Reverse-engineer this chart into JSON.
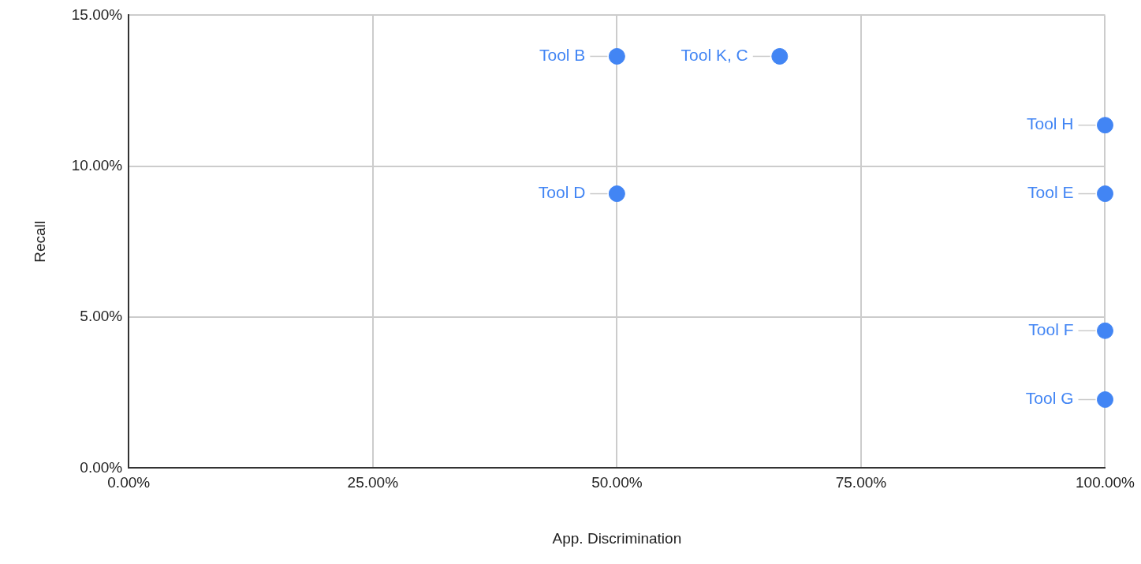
{
  "chart_data": {
    "type": "scatter",
    "xlabel": "App. Discrimination",
    "ylabel": "Recall",
    "x": [
      50,
      66.67,
      100,
      50,
      100,
      100,
      100
    ],
    "series": [
      {
        "color": "#4285f4",
        "values": [
          13.64,
          13.64,
          11.36,
          9.09,
          9.09,
          4.55,
          2.27
        ]
      }
    ],
    "annotations": [
      {
        "text": "Tool B",
        "x": 50,
        "y": 13.64
      },
      {
        "text": "Tool K, C",
        "x": 66.67,
        "y": 13.64
      },
      {
        "text": "Tool H",
        "x": 100,
        "y": 11.36
      },
      {
        "text": "Tool D",
        "x": 50,
        "y": 9.09
      },
      {
        "text": "Tool E",
        "x": 100,
        "y": 9.09
      },
      {
        "text": "Tool F",
        "x": 100,
        "y": 4.55
      },
      {
        "text": "Tool G",
        "x": 100,
        "y": 2.27
      }
    ],
    "xlim": [
      0,
      100
    ],
    "ylim": [
      0,
      15
    ],
    "xticks": [
      {
        "value": 0,
        "label": "0.00%"
      },
      {
        "value": 25,
        "label": "25.00%"
      },
      {
        "value": 50,
        "label": "50.00%"
      },
      {
        "value": 75,
        "label": "75.00%"
      },
      {
        "value": 100,
        "label": "100.00%"
      }
    ],
    "yticks": [
      {
        "value": 0,
        "label": "0.00%"
      },
      {
        "value": 5,
        "label": "5.00%"
      },
      {
        "value": 10,
        "label": "10.00%"
      },
      {
        "value": 15,
        "label": "15.00%"
      }
    ],
    "grid": true,
    "legend": false,
    "marker": "circle"
  }
}
